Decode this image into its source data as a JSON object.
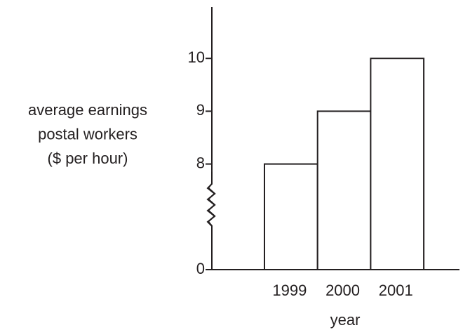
{
  "chart_data": {
    "type": "bar",
    "categories": [
      "1999",
      "2000",
      "2001"
    ],
    "values": [
      8,
      9,
      10
    ],
    "color": "#ffffff",
    "xlabel": "year",
    "ylabel": [
      "average earnings",
      "postal workers",
      "($ per hour)"
    ],
    "ylim": [
      0,
      11
    ],
    "y_break": [
      0,
      6
    ],
    "yticks": [
      0,
      8,
      9,
      10
    ],
    "grid": false
  }
}
